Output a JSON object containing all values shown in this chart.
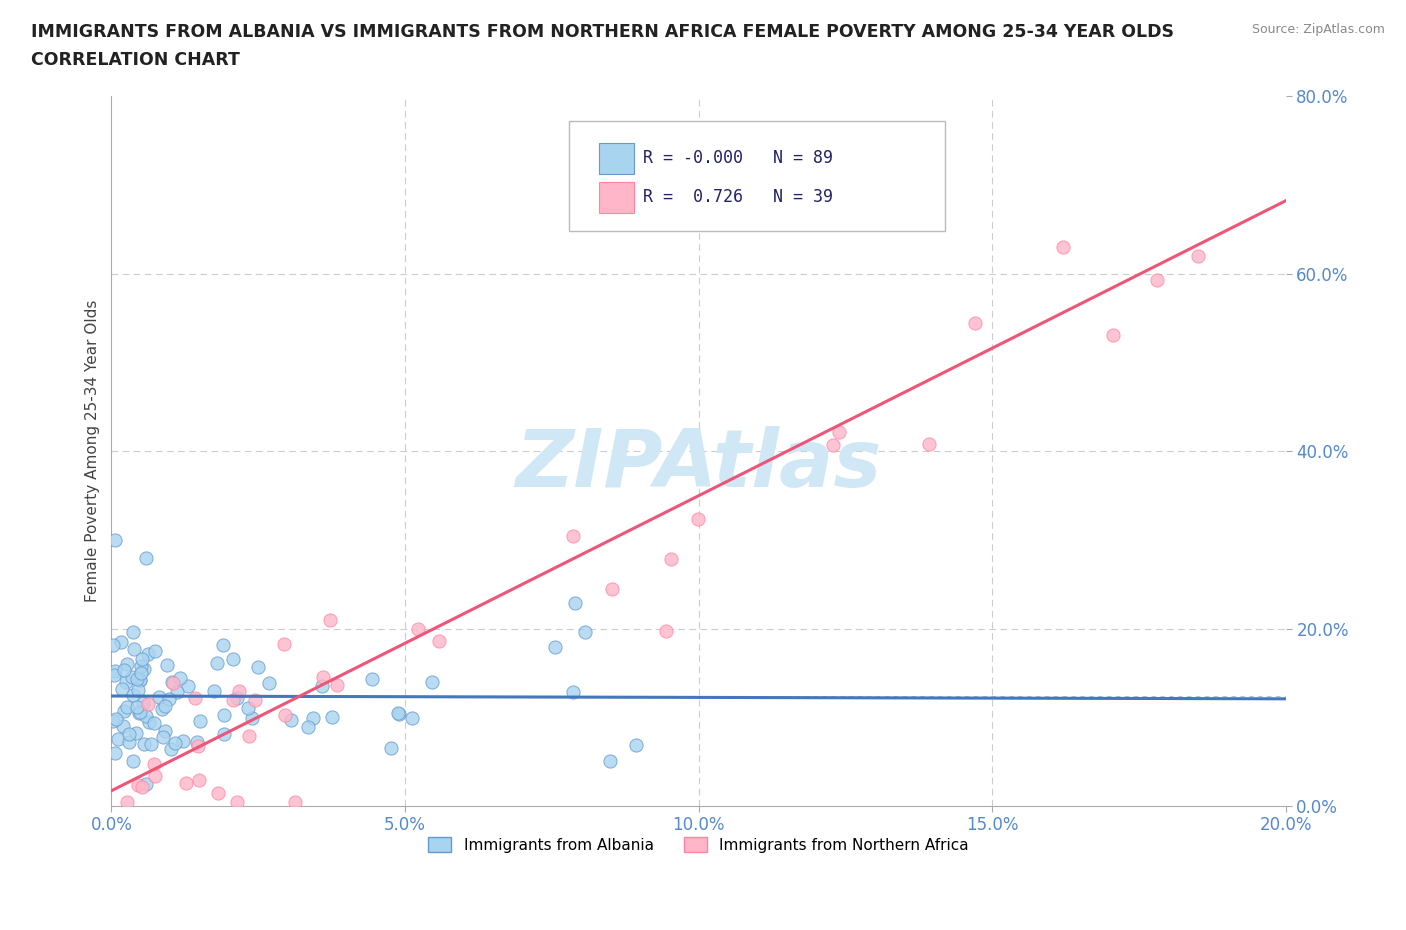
{
  "title_line1": "IMMIGRANTS FROM ALBANIA VS IMMIGRANTS FROM NORTHERN AFRICA FEMALE POVERTY AMONG 25-34 YEAR OLDS",
  "title_line2": "CORRELATION CHART",
  "source_text": "Source: ZipAtlas.com",
  "ylabel": "Female Poverty Among 25-34 Year Olds",
  "xlim": [
    0.0,
    0.2
  ],
  "ylim": [
    0.0,
    0.8
  ],
  "xticks": [
    0.0,
    0.05,
    0.1,
    0.15,
    0.2
  ],
  "yticks": [
    0.0,
    0.2,
    0.4,
    0.6,
    0.8
  ],
  "xticklabels": [
    "0.0%",
    "5.0%",
    "10.0%",
    "15.0%",
    "20.0%"
  ],
  "yticklabels": [
    "0.0%",
    "20.0%",
    "40.0%",
    "60.0%",
    "80.0%"
  ],
  "albania_color": "#A8D4F0",
  "albania_edge_color": "#6699CC",
  "northern_africa_color": "#FFB6C8",
  "northern_africa_edge_color": "#FF85A0",
  "albania_R": -0.0,
  "albania_N": 89,
  "northern_africa_R": 0.726,
  "northern_africa_N": 39,
  "regression_albania_color": "#4477BB",
  "regression_na_color": "#EE5577",
  "watermark": "ZIPAtlas",
  "watermark_color": "#D0E8F5",
  "legend_label_albania": "Immigrants from Albania",
  "legend_label_na": "Immigrants from Northern Africa",
  "grid_color": "#CCCCCC",
  "background_color": "#FFFFFF",
  "tick_color": "#5588CC",
  "title_color": "#222222"
}
